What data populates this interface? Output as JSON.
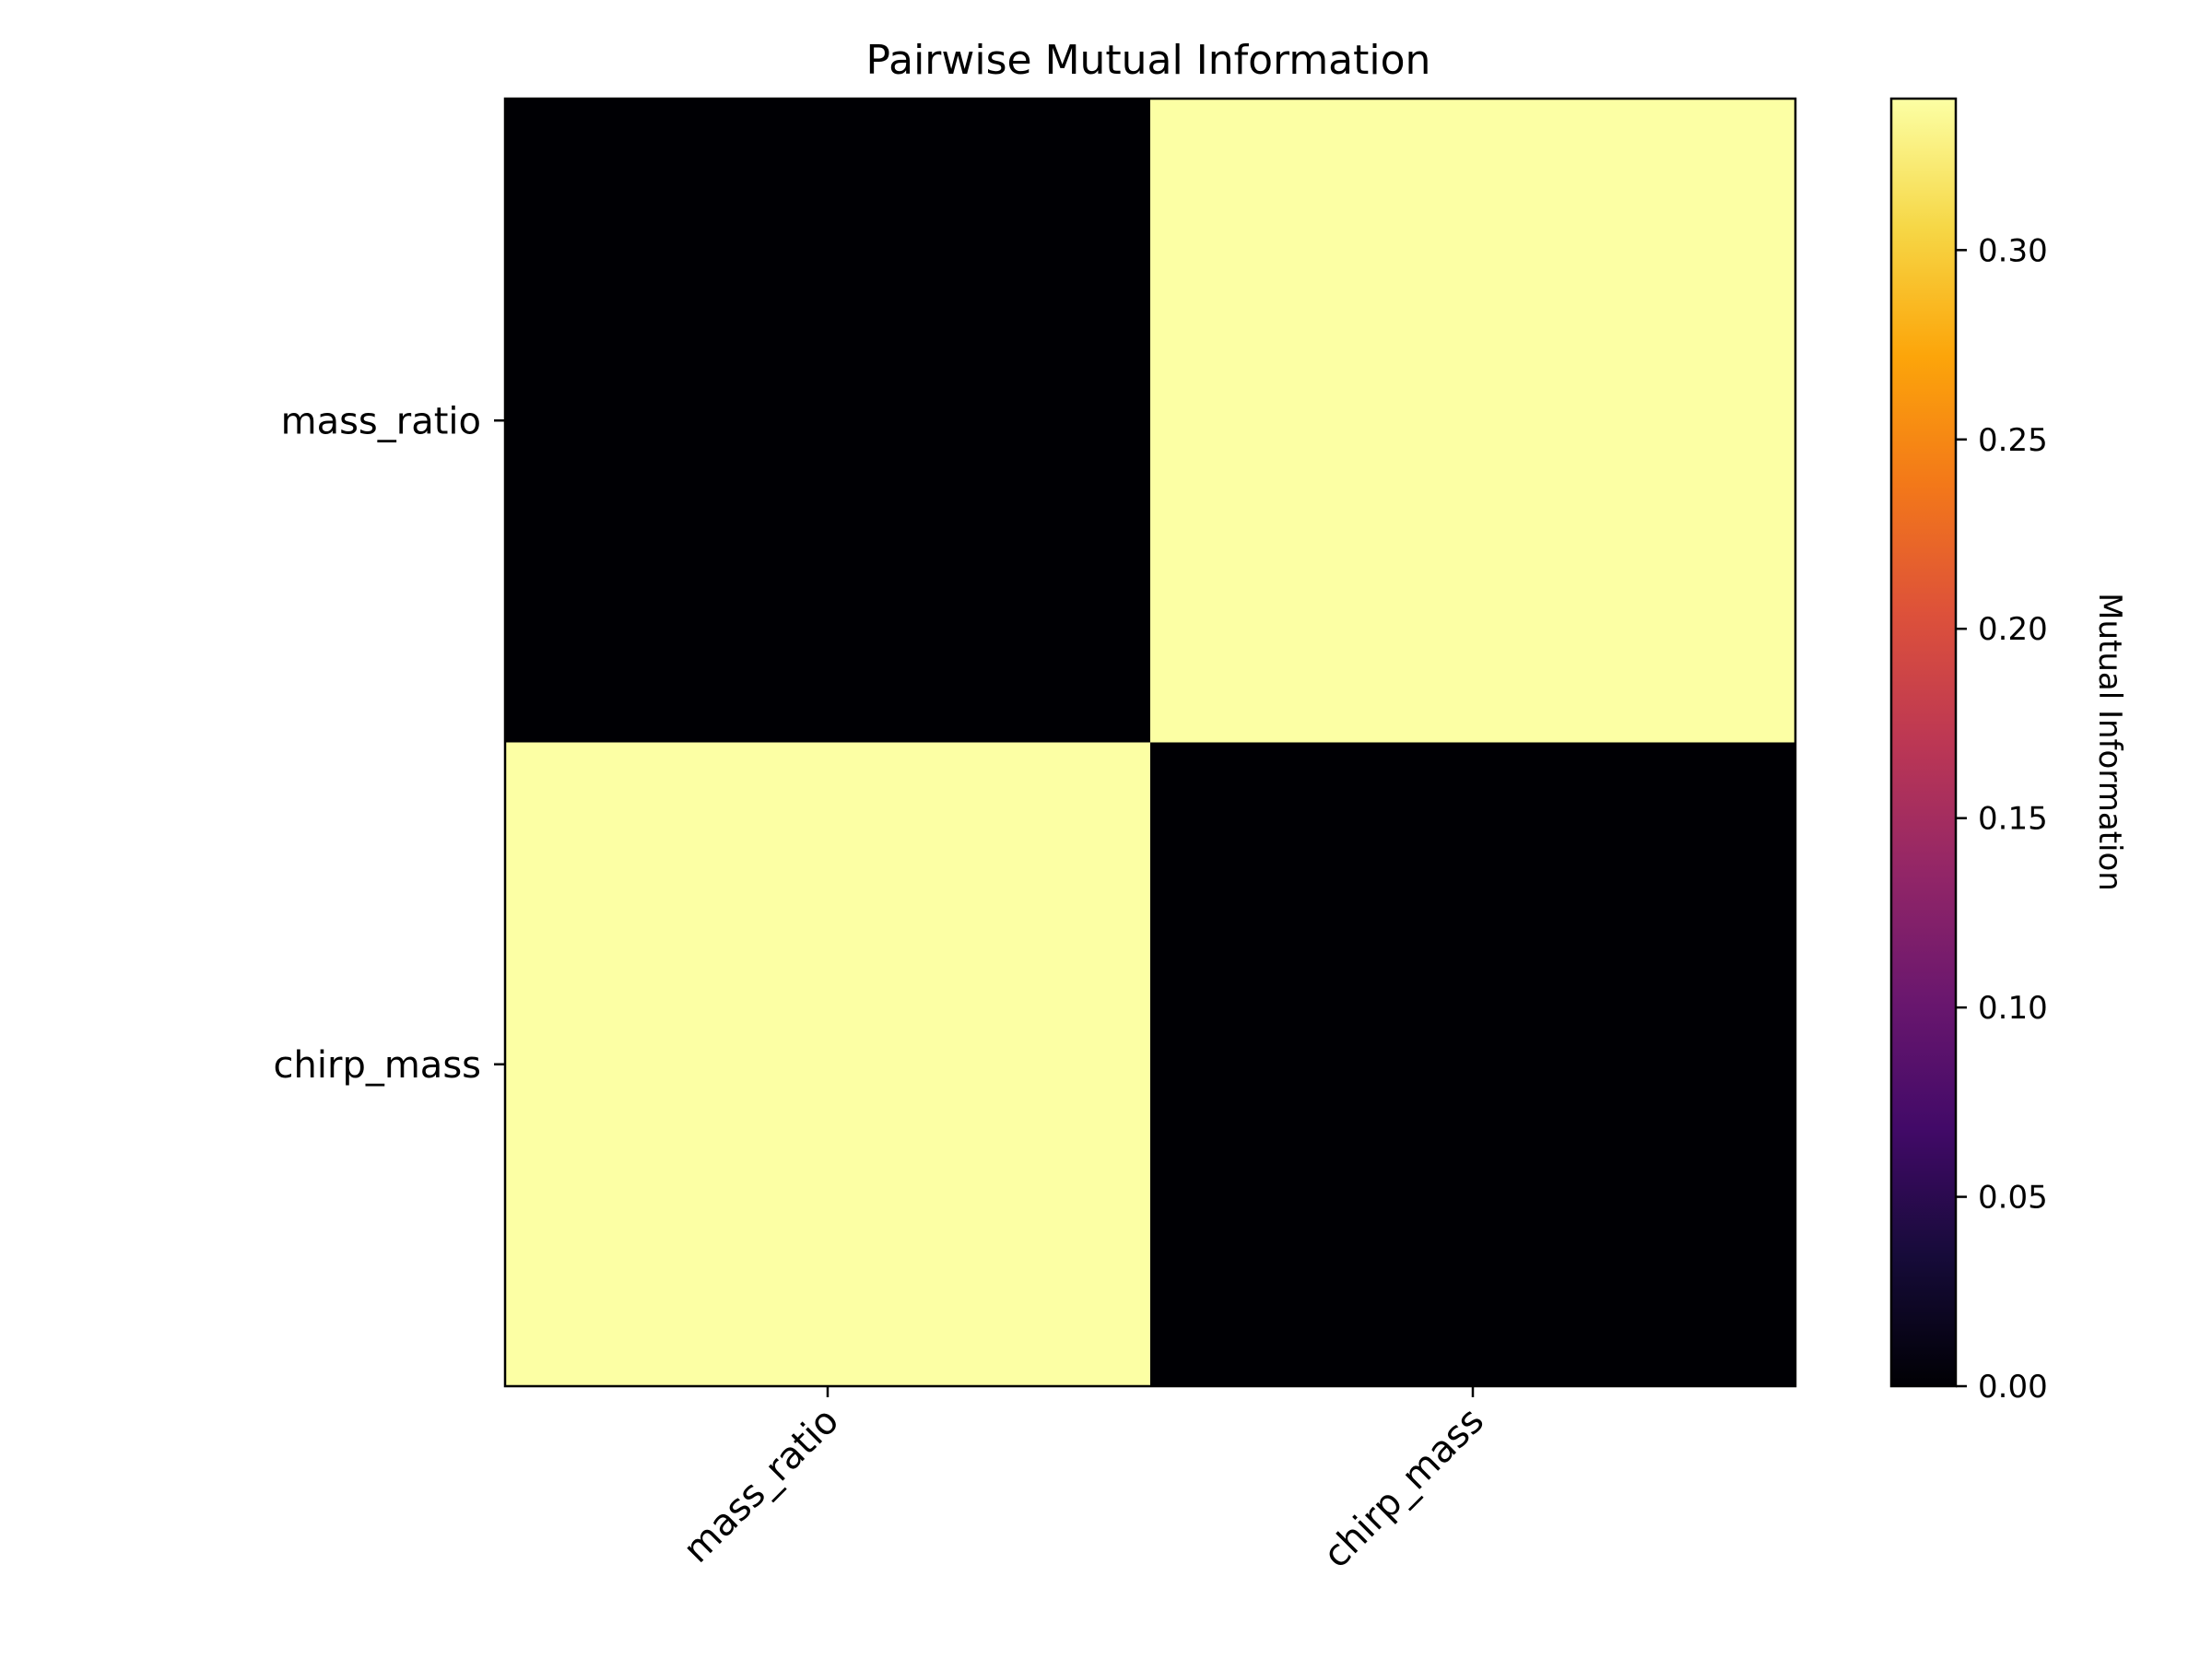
{
  "chart_data": {
    "type": "heatmap",
    "title": "Pairwise Mutual Information",
    "rows": [
      "mass_ratio",
      "chirp_mass"
    ],
    "columns": [
      "mass_ratio",
      "chirp_mass"
    ],
    "values": [
      [
        0.0,
        0.34
      ],
      [
        0.34,
        0.0
      ]
    ],
    "colorbar": {
      "label": "Mutual Information",
      "colormap": "inferno",
      "range": [
        0.0,
        0.34
      ],
      "ticks": [
        0.0,
        0.05,
        0.1,
        0.15,
        0.2,
        0.25,
        0.3
      ],
      "tick_labels": [
        "0.00",
        "0.05",
        "0.10",
        "0.15",
        "0.20",
        "0.25",
        "0.30"
      ]
    },
    "grid": false
  }
}
